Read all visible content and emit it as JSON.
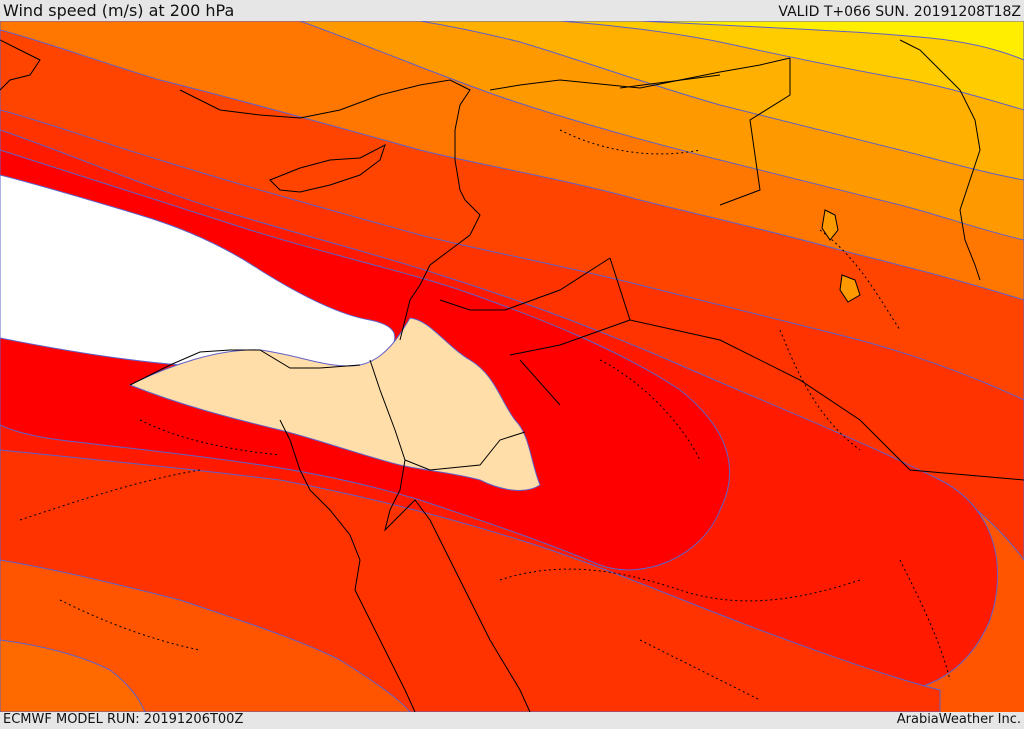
{
  "header": {
    "title": "Wind speed (m/s) at 200 hPa",
    "valid_time": "VALID T+066 SUN. 20191208T18Z"
  },
  "footer": {
    "model_run": "ECMWF MODEL RUN: 20191206T00Z",
    "credit": "ArabiaWeather Inc."
  },
  "map": {
    "variable": "wind speed",
    "level_hpa": 200,
    "units": "m/s",
    "palette": {
      "yellow": "#ffee00",
      "light_yellow_orange": "#ffcc00",
      "light_orange": "#ffb000",
      "orange": "#ff9900",
      "deep_orange": "#ff7700",
      "orange_red": "#ff5500",
      "red_orange": "#ff3300",
      "red": "#ff1a00",
      "bright_red": "#ff0000",
      "peach_minimum": "#ffdeaa",
      "white_maximum": "#ffffff",
      "contour_line": "#6060c8",
      "coastline": "#000000"
    }
  }
}
